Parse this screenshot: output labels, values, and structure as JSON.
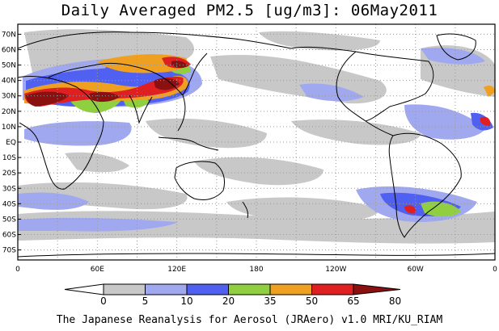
{
  "title": "Daily Averaged PM2.5 [ug/m3]: 06May2011",
  "footer": "The Japanese Reanalysis for Aerosol (JRAero) v1.0 MRI/KU_RIAM",
  "lat_labels": [
    "70N",
    "60N",
    "50N",
    "40N",
    "30N",
    "20N",
    "10N",
    "EQ",
    "10S",
    "20S",
    "30S",
    "40S",
    "50S",
    "60S",
    "70S"
  ],
  "lon_labels": [
    "0",
    "60E",
    "120E",
    "180",
    "120W",
    "60W",
    "0"
  ],
  "colorbar": {
    "labels": [
      "0",
      "5",
      "10",
      "20",
      "35",
      "50",
      "65",
      "80"
    ],
    "colors": [
      "#ffffff",
      "#c8c8c8",
      "#a0a8f0",
      "#5060f0",
      "#90d040",
      "#f0a020",
      "#e02020",
      "#8b1010"
    ]
  },
  "colors": {
    "frame": "#000000",
    "grid": "#999999",
    "coast": "#000000",
    "bg": "#ffffff"
  }
}
